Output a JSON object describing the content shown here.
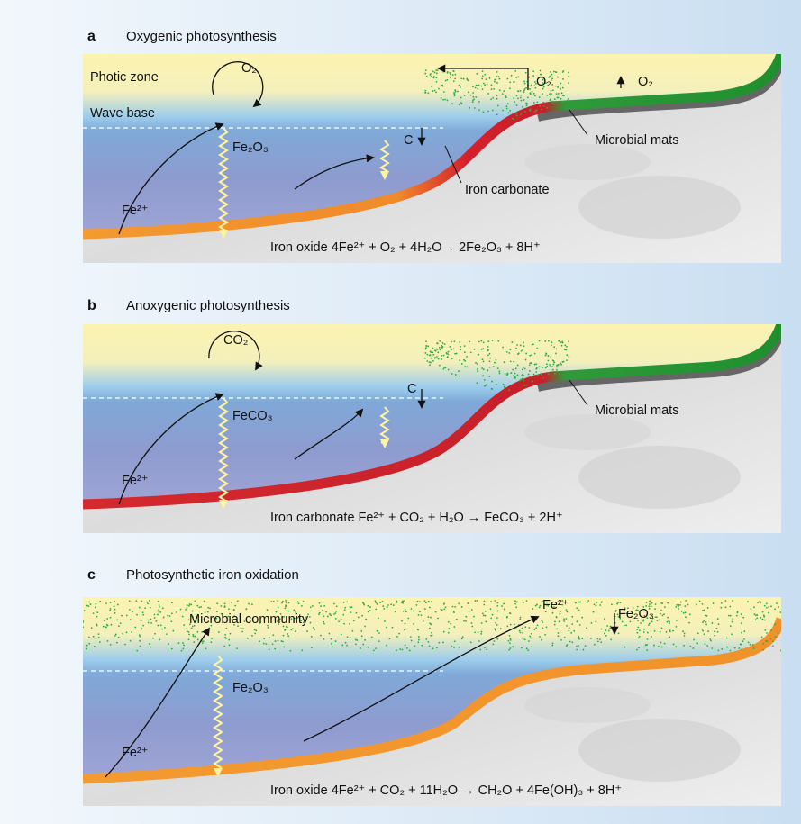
{
  "panels": [
    {
      "letter": "a",
      "title": "Oxygenic photosynthesis",
      "labels": [
        "Photic zone",
        "O₂",
        "Wave base",
        "Fe₂O₃",
        "Fe²⁺",
        "C",
        "O₂",
        "O₂",
        "Microbial mats",
        "Iron carbonate"
      ],
      "equation": "Iron oxide 4Fe²⁺ + O₂ + 4H₂O→  2Fe₂O₃ + 8H⁺"
    },
    {
      "letter": "b",
      "title": "Anoxygenic photosynthesis",
      "labels": [
        "CO₂",
        "FeCO₃",
        "Fe²⁺",
        "C",
        "Microbial mats"
      ],
      "equation": "Iron carbonate Fe²⁺ + CO₂ + H₂O → FeCO₃ + 2H⁺"
    },
    {
      "letter": "c",
      "title": "Photosynthetic iron oxidation",
      "labels": [
        "Microbial community",
        "Fe²⁺",
        "Fe₂O₃",
        "Fe₂O₃",
        "Fe²⁺"
      ],
      "equation": "Iron oxide 4Fe²⁺ + CO₂ + 11H₂O → CH₂O + 4Fe(OH)₃ + 8H⁺"
    }
  ]
}
